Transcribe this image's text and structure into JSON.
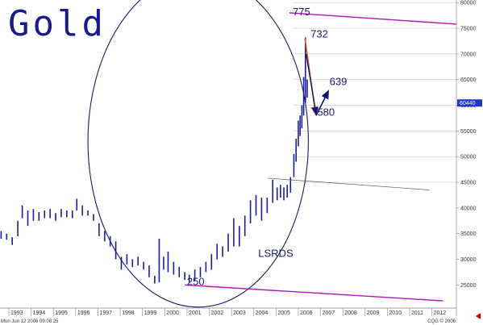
{
  "chart_data": {
    "type": "bar",
    "title": "Gold",
    "subtype": "monthly high-low price bars",
    "x_years": [
      "1993",
      "1994",
      "1995",
      "1996",
      "1997",
      "1998",
      "1999",
      "2000",
      "2001",
      "2002",
      "2003",
      "2004",
      "2005",
      "2006",
      "2007",
      "2008",
      "2009",
      "2010",
      "2011",
      "2012"
    ],
    "y_ticks": [
      25000,
      30000,
      35000,
      40000,
      45000,
      50000,
      55000,
      60000,
      65000,
      70000,
      75000,
      80000
    ],
    "ylim": [
      20500,
      80500
    ],
    "xlim": [
      1992.6,
      2013.1
    ],
    "last_price_label": "60440",
    "last_price_value": 60440,
    "grid": "horizontal",
    "series": [
      {
        "values": [
          {
            "x": 1992.65,
            "lo": 34000,
            "hi": 35500
          },
          {
            "x": 1992.9,
            "lo": 33800,
            "hi": 35000
          },
          {
            "x": 1993.15,
            "lo": 32800,
            "hi": 34300
          },
          {
            "x": 1993.4,
            "lo": 34500,
            "hi": 37500
          },
          {
            "x": 1993.6,
            "lo": 38000,
            "hi": 40500
          },
          {
            "x": 1993.85,
            "lo": 36500,
            "hi": 39500
          },
          {
            "x": 1994.1,
            "lo": 37500,
            "hi": 39800
          },
          {
            "x": 1994.35,
            "lo": 37500,
            "hi": 39200
          },
          {
            "x": 1994.6,
            "lo": 38000,
            "hi": 39500
          },
          {
            "x": 1994.85,
            "lo": 38000,
            "hi": 39800
          },
          {
            "x": 1995.1,
            "lo": 37500,
            "hi": 39000
          },
          {
            "x": 1995.35,
            "lo": 38200,
            "hi": 39800
          },
          {
            "x": 1995.6,
            "lo": 38200,
            "hi": 39500
          },
          {
            "x": 1995.85,
            "lo": 38000,
            "hi": 39500
          },
          {
            "x": 1996.05,
            "lo": 39500,
            "hi": 41800
          },
          {
            "x": 1996.3,
            "lo": 38500,
            "hi": 40500
          },
          {
            "x": 1996.55,
            "lo": 38500,
            "hi": 39500
          },
          {
            "x": 1996.8,
            "lo": 37500,
            "hi": 38800
          },
          {
            "x": 1997.05,
            "lo": 34500,
            "hi": 37000
          },
          {
            "x": 1997.3,
            "lo": 33500,
            "hi": 35500
          },
          {
            "x": 1997.55,
            "lo": 32500,
            "hi": 34500
          },
          {
            "x": 1997.8,
            "lo": 30000,
            "hi": 33500
          },
          {
            "x": 1998.05,
            "lo": 28000,
            "hi": 30500
          },
          {
            "x": 1998.3,
            "lo": 29000,
            "hi": 31000
          },
          {
            "x": 1998.55,
            "lo": 28500,
            "hi": 30000
          },
          {
            "x": 1998.8,
            "lo": 28800,
            "hi": 30500
          },
          {
            "x": 1999.05,
            "lo": 28000,
            "hi": 29500
          },
          {
            "x": 1999.3,
            "lo": 26500,
            "hi": 28800
          },
          {
            "x": 1999.55,
            "lo": 25300,
            "hi": 26800
          },
          {
            "x": 1999.75,
            "lo": 25500,
            "hi": 34000
          },
          {
            "x": 1999.95,
            "lo": 28000,
            "hi": 30500
          },
          {
            "x": 2000.15,
            "lo": 27500,
            "hi": 31500
          },
          {
            "x": 2000.4,
            "lo": 27000,
            "hi": 29500
          },
          {
            "x": 2000.65,
            "lo": 26500,
            "hi": 28500
          },
          {
            "x": 2000.9,
            "lo": 26000,
            "hi": 27500
          },
          {
            "x": 2001.1,
            "lo": 25500,
            "hi": 27000
          },
          {
            "x": 2001.35,
            "lo": 25800,
            "hi": 28000
          },
          {
            "x": 2001.6,
            "lo": 26500,
            "hi": 28500
          },
          {
            "x": 2001.85,
            "lo": 27500,
            "hi": 29500
          },
          {
            "x": 2002.1,
            "lo": 28000,
            "hi": 31000
          },
          {
            "x": 2002.35,
            "lo": 30000,
            "hi": 33000
          },
          {
            "x": 2002.6,
            "lo": 30500,
            "hi": 32500
          },
          {
            "x": 2002.85,
            "lo": 31500,
            "hi": 35000
          },
          {
            "x": 2003.1,
            "lo": 32500,
            "hi": 38000
          },
          {
            "x": 2003.35,
            "lo": 32500,
            "hi": 36500
          },
          {
            "x": 2003.6,
            "lo": 34500,
            "hi": 38500
          },
          {
            "x": 2003.85,
            "lo": 37000,
            "hi": 41500
          },
          {
            "x": 2004.1,
            "lo": 38500,
            "hi": 42500
          },
          {
            "x": 2004.35,
            "lo": 37500,
            "hi": 42000
          },
          {
            "x": 2004.6,
            "lo": 39000,
            "hi": 42000
          },
          {
            "x": 2004.85,
            "lo": 41000,
            "hi": 45500
          },
          {
            "x": 2005.05,
            "lo": 41500,
            "hi": 44000
          },
          {
            "x": 2005.2,
            "lo": 42000,
            "hi": 44500
          },
          {
            "x": 2005.35,
            "lo": 41500,
            "hi": 44000
          },
          {
            "x": 2005.5,
            "lo": 42000,
            "hi": 44500
          },
          {
            "x": 2005.65,
            "lo": 43000,
            "hi": 46000
          },
          {
            "x": 2005.8,
            "lo": 46000,
            "hi": 50500
          },
          {
            "x": 2005.9,
            "lo": 49000,
            "hi": 53500
          },
          {
            "x": 2006.0,
            "lo": 52000,
            "hi": 57000
          },
          {
            "x": 2006.08,
            "lo": 54000,
            "hi": 58000
          },
          {
            "x": 2006.16,
            "lo": 55500,
            "hi": 60000
          },
          {
            "x": 2006.24,
            "lo": 58000,
            "hi": 65500
          },
          {
            "x": 2006.32,
            "lo": 60500,
            "hi": 73200
          },
          {
            "x": 2006.4,
            "lo": 61500,
            "hi": 65000
          }
        ]
      }
    ],
    "annotations": [
      {
        "text": "775",
        "x": 2005.75,
        "y": 77500
      },
      {
        "text": "732",
        "x": 2006.55,
        "y": 73200
      },
      {
        "text": "639",
        "x": 2007.4,
        "y": 63900
      },
      {
        "text": "580",
        "x": 2006.85,
        "y": 58000
      },
      {
        "text": "250",
        "x": 2001.0,
        "y": 25000
      },
      {
        "text": "LSRDS",
        "x": 2004.2,
        "y": 30500
      }
    ],
    "footer_left": "Mon Jun 12 2006 09:08:25",
    "footer_right": "CQG © 2006"
  },
  "colors": {
    "bars": "#1c1c9c",
    "arc": "#1a1a70",
    "channel": "#b414b4",
    "grid": "#c9c9c9",
    "orange": "#e06010",
    "arrow": "#111470",
    "flag": "#1f35cc"
  }
}
